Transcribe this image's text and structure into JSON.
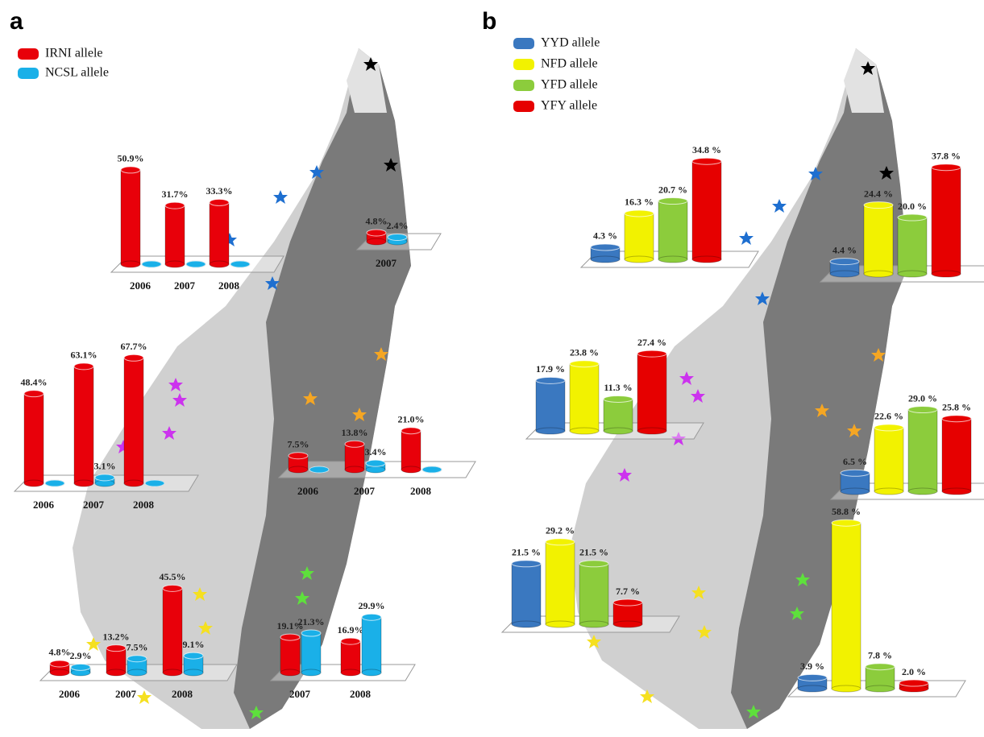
{
  "chart_data": [
    {
      "type": "bar",
      "panel": "a",
      "series": [
        {
          "name": "IRNI allele",
          "color": "#e8000a"
        },
        {
          "name": "NCSL allele",
          "color": "#1ab0e8"
        }
      ],
      "groups": [
        {
          "categories": [
            "2006",
            "2007",
            "2008"
          ],
          "values": [
            [
              50.9,
              31.7,
              33.3
            ],
            [
              0,
              0,
              0
            ]
          ],
          "value_labels": [
            [
              "50.9%",
              "31.7%",
              "33.3%"
            ],
            [
              null,
              null,
              null
            ]
          ]
        },
        {
          "categories": [
            "2007"
          ],
          "values": [
            [
              4.8
            ],
            [
              2.4
            ]
          ],
          "value_labels": [
            [
              "4.8%"
            ],
            [
              "2.4%"
            ]
          ]
        },
        {
          "categories": [
            "2006",
            "2007",
            "2008"
          ],
          "values": [
            [
              48.4,
              63.1,
              67.7
            ],
            [
              0,
              3.1,
              0
            ]
          ],
          "value_labels": [
            [
              "48.4%",
              "63.1%",
              "67.7%"
            ],
            [
              null,
              "3.1%",
              null
            ]
          ]
        },
        {
          "categories": [
            "2006",
            "2007",
            "2008"
          ],
          "values": [
            [
              7.5,
              13.8,
              21.0
            ],
            [
              0,
              3.4,
              0
            ]
          ],
          "value_labels": [
            [
              "7.5%",
              "13.8%",
              "21.0%"
            ],
            [
              null,
              "3.4%",
              null
            ]
          ]
        },
        {
          "categories": [
            "2006",
            "2007",
            "2008"
          ],
          "values": [
            [
              4.8,
              13.2,
              45.5
            ],
            [
              2.9,
              7.5,
              9.1
            ]
          ],
          "value_labels": [
            [
              "4.8%",
              "13.2%",
              "45.5%"
            ],
            [
              "2.9%",
              "7.5%",
              "9.1%"
            ]
          ]
        },
        {
          "categories": [
            "2007",
            "2008"
          ],
          "values": [
            [
              19.1,
              16.9
            ],
            [
              21.3,
              29.9
            ]
          ],
          "value_labels": [
            [
              "19.1%",
              "16.9%"
            ],
            [
              "21.3%",
              "29.9%"
            ]
          ]
        }
      ]
    },
    {
      "type": "bar",
      "panel": "b",
      "series": [
        {
          "name": "YYD allele",
          "color": "#3a78c0"
        },
        {
          "name": "NFD allele",
          "color": "#f2f200"
        },
        {
          "name": "YFD allele",
          "color": "#8ccc3c"
        },
        {
          "name": "YFY allele",
          "color": "#e60000"
        }
      ],
      "groups": [
        {
          "categories": [
            null
          ],
          "values": [
            [
              4.3
            ],
            [
              16.3
            ],
            [
              20.7
            ],
            [
              34.8
            ]
          ],
          "value_labels": [
            [
              "4.3 %"
            ],
            [
              "16.3 %"
            ],
            [
              "20.7 %"
            ],
            [
              "34.8 %"
            ]
          ]
        },
        {
          "categories": [
            null
          ],
          "values": [
            [
              4.4
            ],
            [
              24.4
            ],
            [
              20.0
            ],
            [
              37.8
            ]
          ],
          "value_labels": [
            [
              "4.4 %"
            ],
            [
              "24.4 %"
            ],
            [
              "20.0 %"
            ],
            [
              "37.8 %"
            ]
          ]
        },
        {
          "categories": [
            null
          ],
          "values": [
            [
              17.9
            ],
            [
              23.8
            ],
            [
              11.3
            ],
            [
              27.4
            ]
          ],
          "value_labels": [
            [
              "17.9 %"
            ],
            [
              "23.8 %"
            ],
            [
              "11.3 %"
            ],
            [
              "27.4 %"
            ]
          ]
        },
        {
          "categories": [
            null
          ],
          "values": [
            [
              6.5
            ],
            [
              22.6
            ],
            [
              29.0
            ],
            [
              25.8
            ]
          ],
          "value_labels": [
            [
              "6.5 %"
            ],
            [
              "22.6 %"
            ],
            [
              "29.0 %"
            ],
            [
              "25.8 %"
            ]
          ]
        },
        {
          "categories": [
            null
          ],
          "values": [
            [
              21.5
            ],
            [
              29.2
            ],
            [
              21.5
            ],
            [
              7.7
            ]
          ],
          "value_labels": [
            [
              "21.5 %"
            ],
            [
              "29.2 %"
            ],
            [
              "21.5 %"
            ],
            [
              "7.7 %"
            ]
          ]
        },
        {
          "categories": [
            null
          ],
          "values": [
            [
              3.9
            ],
            [
              58.8
            ],
            [
              7.8
            ],
            [
              2.0
            ]
          ],
          "value_labels": [
            [
              "3.9 %"
            ],
            [
              "58.8 %"
            ],
            [
              "7.8 %"
            ],
            [
              "2.0 %"
            ]
          ]
        }
      ]
    }
  ]
}
